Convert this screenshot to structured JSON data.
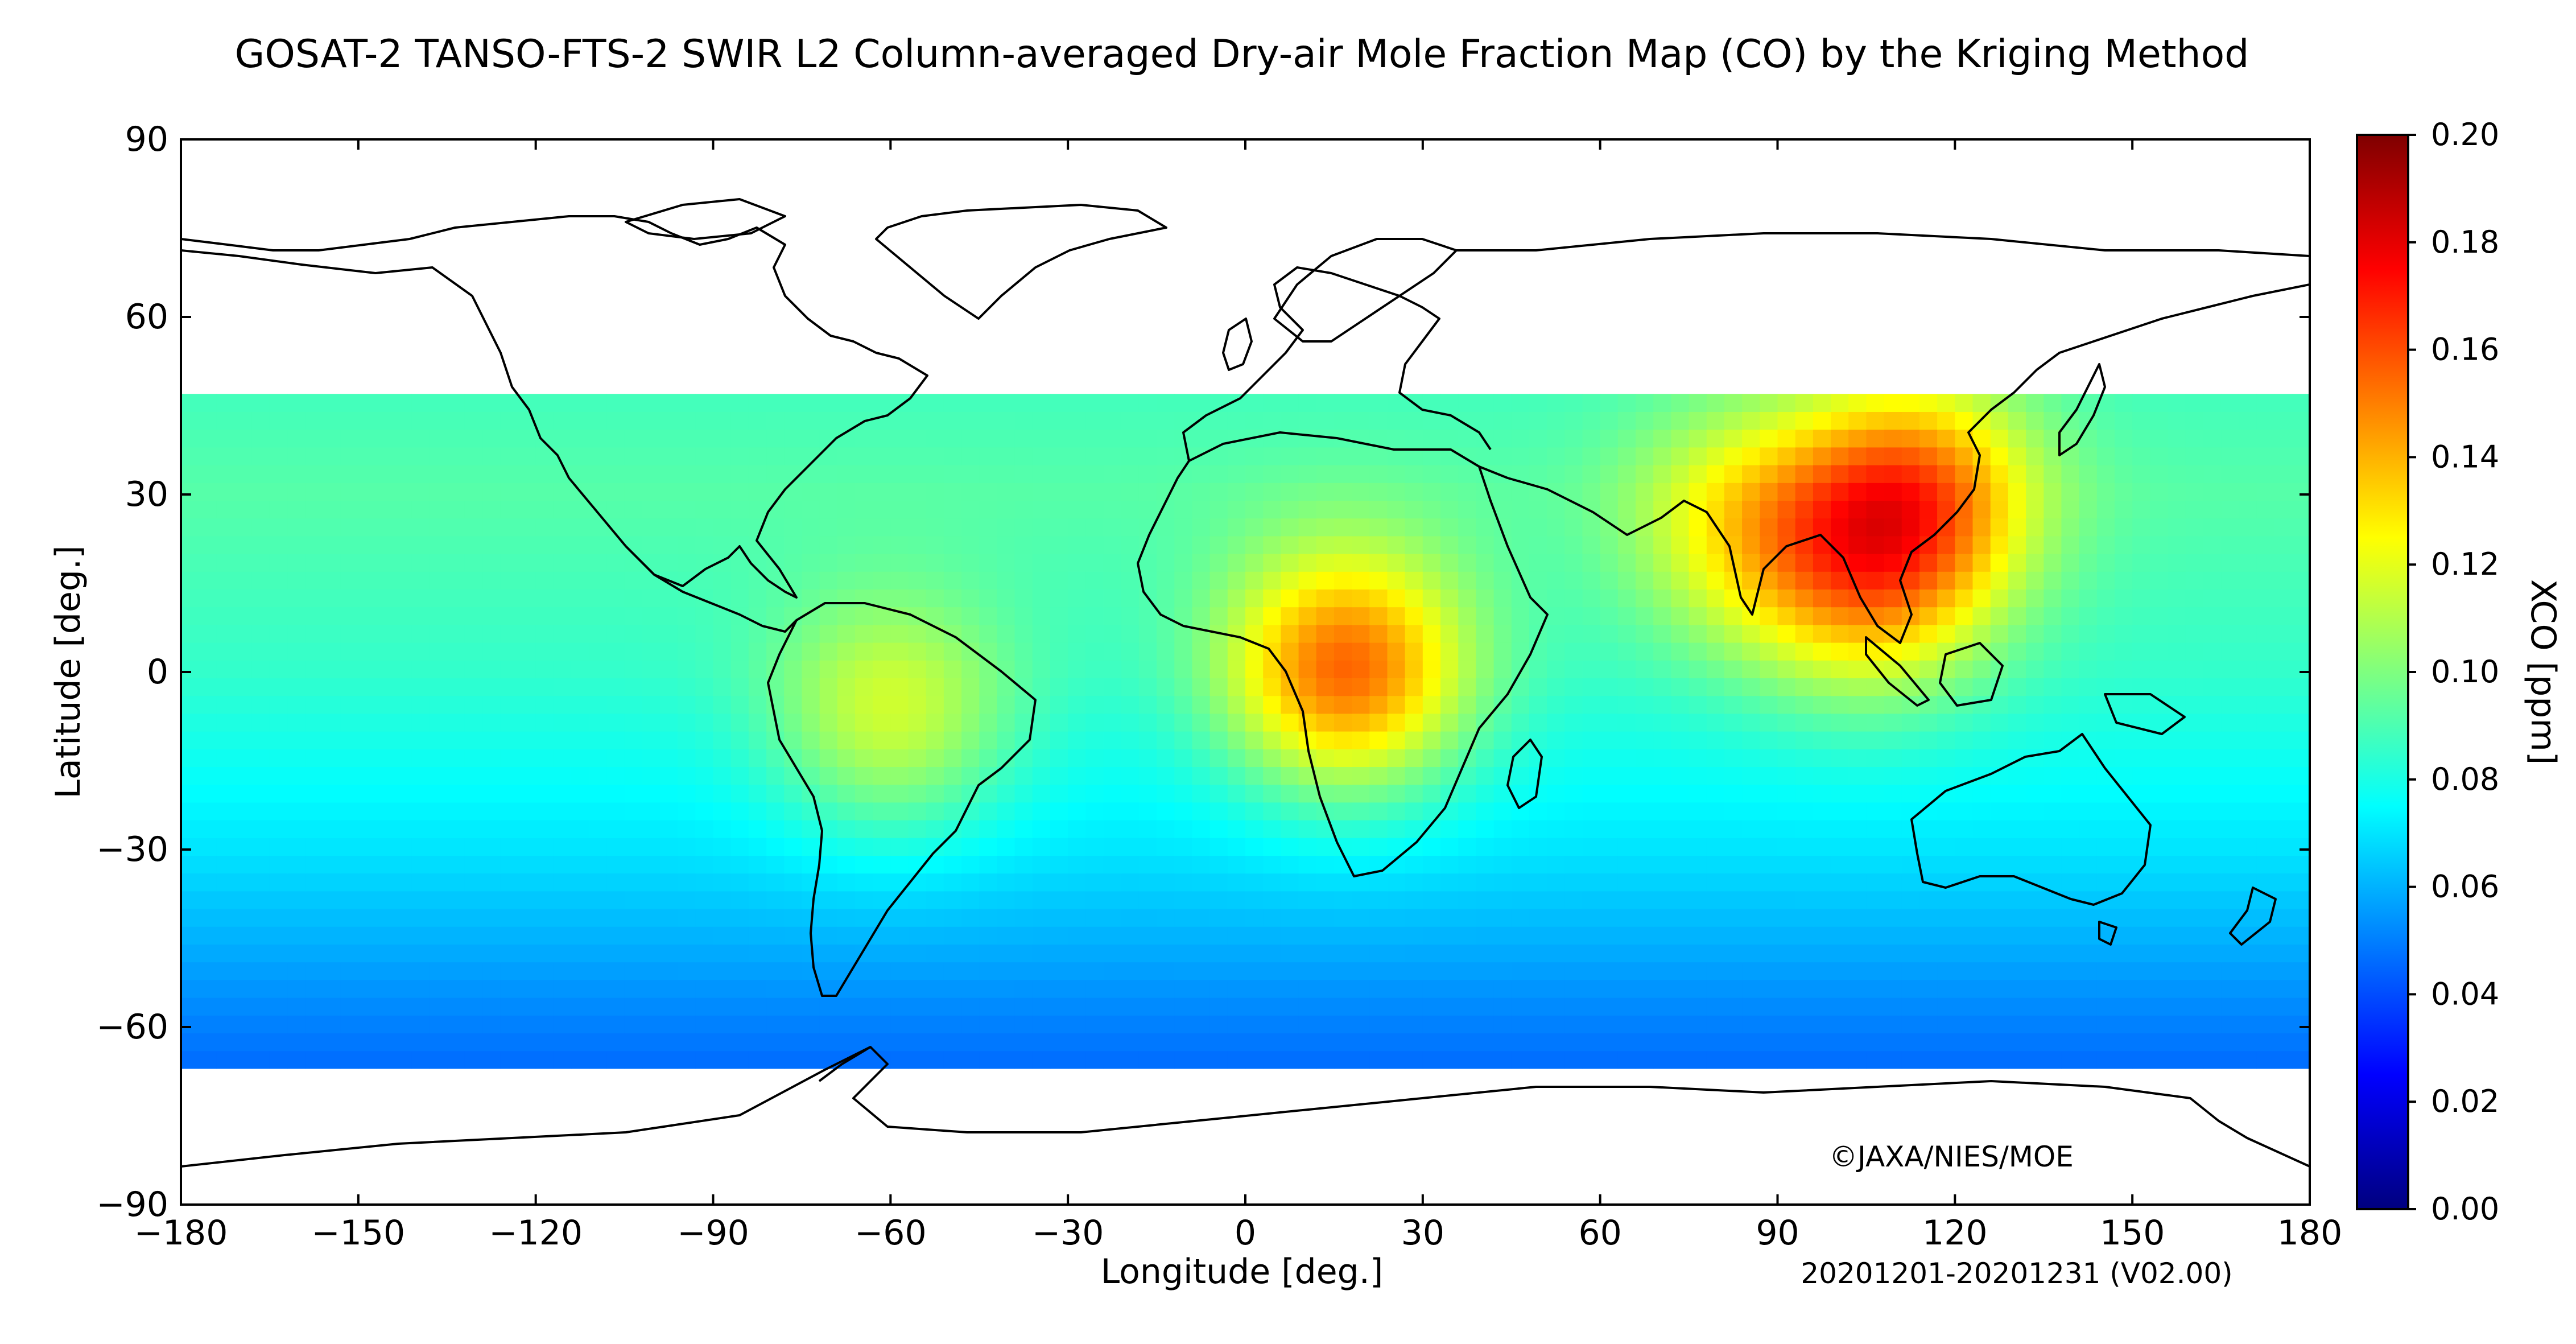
{
  "title": "GOSAT-2 TANSO-FTS-2 SWIR L2 Column-averaged Dry-air Mole Fraction Map (CO) by the Kriging Method",
  "copyright": "©JAXA/NIES/MOE",
  "period": "20201201-20201231 (V02.00)",
  "chart_data": {
    "type": "heatmap",
    "title": "GOSAT-2 TANSO-FTS-2 SWIR L2 Column-averaged Dry-air Mole Fraction Map (CO) by the Kriging Method",
    "xlabel": "Longitude [deg.]",
    "ylabel": "Latitude [deg.]",
    "xlim": [
      -180,
      180
    ],
    "ylim": [
      -90,
      90
    ],
    "x_ticks": [
      "−180",
      "−150",
      "−120",
      "−90",
      "−60",
      "−30",
      "0",
      "30",
      "60",
      "90",
      "120",
      "150",
      "180"
    ],
    "y_ticks": [
      "90",
      "60",
      "30",
      "0",
      "−30",
      "−60",
      "−90"
    ],
    "data_lat_range": [
      -67,
      47
    ],
    "colorbar": {
      "label": "XCO [ppm]",
      "range": [
        0.0,
        0.2
      ],
      "ticks": [
        "0.20",
        "0.18",
        "0.16",
        "0.14",
        "0.12",
        "0.10",
        "0.08",
        "0.06",
        "0.04",
        "0.02",
        "0.00"
      ],
      "colormap": [
        "#00007f",
        "#0000ff",
        "#007fff",
        "#00ffff",
        "#7fff7f",
        "#ffff00",
        "#ff7f00",
        "#ff0000",
        "#7f0000"
      ]
    },
    "baseline_ppm": {
      "equator": 0.085,
      "lat_30N": 0.092,
      "lat_30S": 0.07,
      "lat_60S": 0.05
    },
    "hotspots": [
      {
        "region": "Central Africa",
        "lon": 17,
        "lat": 0,
        "ppm": 0.155
      },
      {
        "region": "East China",
        "lon": 113,
        "lat": 30,
        "ppm": 0.15
      },
      {
        "region": "South Asia",
        "lon": 85,
        "lat": 25,
        "ppm": 0.125
      },
      {
        "region": "Southeast Asia",
        "lon": 105,
        "lat": 15,
        "ppm": 0.13
      },
      {
        "region": "South America",
        "lon": -60,
        "lat": -8,
        "ppm": 0.115
      }
    ]
  }
}
